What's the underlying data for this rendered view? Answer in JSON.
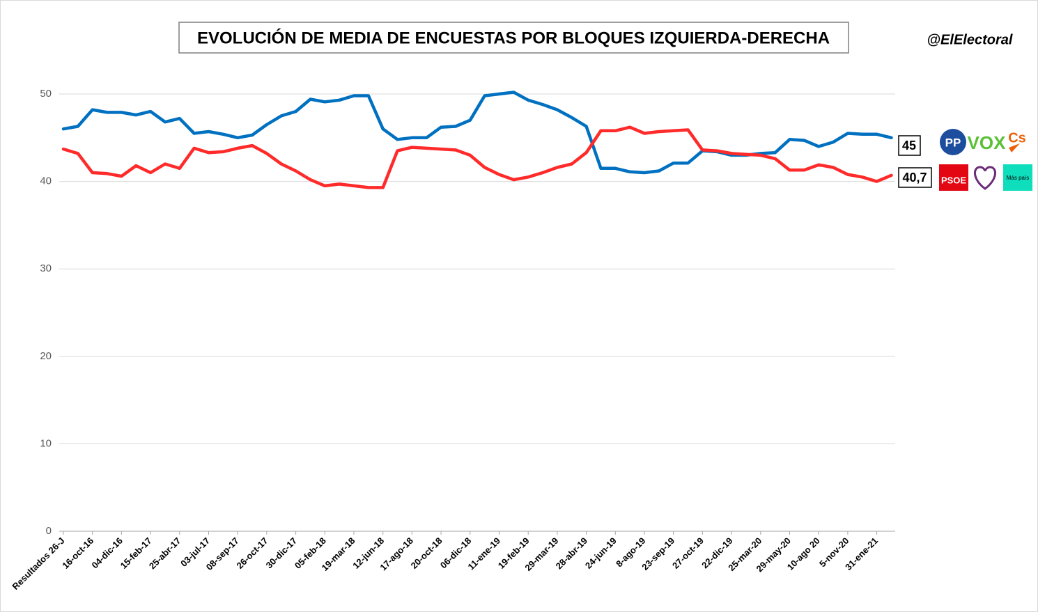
{
  "chart_data": {
    "type": "line",
    "title": "EVOLUCIÓN DE MEDIA DE ENCUESTAS POR BLOQUES IZQUIERDA-DERECHA",
    "source": "@ElElectoral",
    "categories": [
      "Resultados 26-J",
      null,
      "16-oct-16",
      null,
      "04-dic-16",
      null,
      "15-feb-17",
      null,
      "25-abr-17",
      null,
      "03-jul-17",
      null,
      "08-sep-17",
      null,
      "26-oct-17",
      null,
      "30-dic-17",
      null,
      "05-feb-18",
      null,
      "19-mar-18",
      null,
      "12-jun-18",
      null,
      "17-ago-18",
      null,
      "20-oct-18",
      null,
      "06-dic-18",
      null,
      "11-ene-19",
      null,
      "19-feb-19",
      null,
      "29-mar-19",
      null,
      "28-abr-19",
      null,
      "24-jun-19",
      null,
      "8-ago-19",
      null,
      "23-sep-19",
      null,
      "27-oct-19",
      null,
      "22-dic-19",
      null,
      "25-mar-20",
      null,
      "29-may-20",
      null,
      "10-ago 20",
      null,
      "5-nov-20",
      null,
      "31-ene-21",
      null
    ],
    "series": [
      {
        "color": "#0070c0",
        "parties": [
          "PP",
          "VOX",
          "Cs"
        ],
        "end_label": "45",
        "values": [
          46.0,
          46.3,
          48.2,
          47.9,
          47.9,
          47.6,
          48.0,
          46.8,
          47.2,
          45.5,
          45.7,
          45.4,
          45.0,
          45.3,
          46.5,
          47.5,
          48.0,
          49.4,
          49.1,
          49.3,
          49.8,
          49.8,
          46.0,
          44.8,
          45.0,
          45.0,
          46.2,
          46.3,
          47.0,
          49.8,
          50.0,
          50.2,
          49.3,
          48.8,
          48.2,
          47.3,
          46.3,
          41.5,
          41.5,
          41.1,
          41.0,
          41.2,
          42.1,
          42.1,
          43.5,
          43.4,
          43.0,
          43.0,
          43.2,
          43.3,
          44.8,
          44.7,
          44.0,
          44.5,
          45.5,
          45.4,
          45.4,
          45
        ]
      },
      {
        "color": "#ff2a2a",
        "parties": [
          "PSOE",
          "Más país"
        ],
        "end_label": "40,7",
        "values": [
          43.7,
          43.2,
          41.0,
          40.9,
          40.6,
          41.8,
          41.0,
          42.0,
          41.5,
          43.8,
          43.3,
          43.4,
          43.8,
          44.1,
          43.2,
          42.0,
          41.2,
          40.2,
          39.5,
          39.7,
          39.5,
          39.3,
          39.3,
          43.5,
          43.9,
          43.8,
          43.7,
          43.6,
          43.0,
          41.6,
          40.8,
          40.2,
          40.5,
          41.0,
          41.6,
          42.0,
          43.3,
          45.8,
          45.8,
          46.2,
          45.5,
          45.7,
          45.8,
          45.9,
          43.6,
          43.5,
          43.2,
          43.1,
          43.0,
          42.6,
          41.3,
          41.3,
          41.9,
          41.6,
          40.8,
          40.5,
          40.0,
          40.7
        ]
      }
    ],
    "ylim": [
      0,
      50
    ],
    "yticks": [
      0,
      10,
      20,
      30,
      40,
      50
    ],
    "grid": true
  }
}
